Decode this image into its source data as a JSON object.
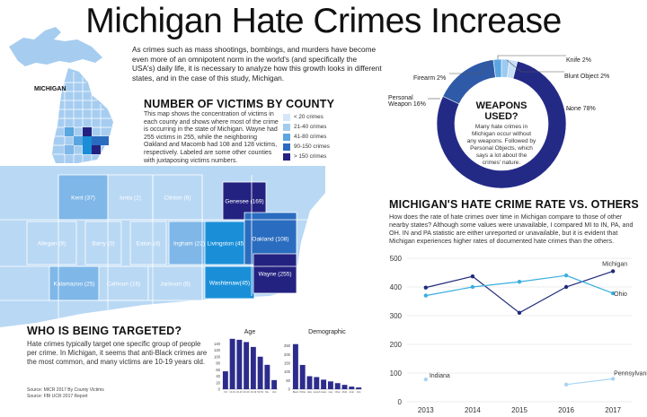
{
  "title": "Michigan Hate Crimes Increase",
  "intro": "As crimes such as mass shootings, bombings, and murders have become even more of an omnipotent norm in the world's (and specifically the USA's) daily life, it is necessary to analyze how this growth looks in different states, and in the case of this study, Michigan.",
  "state_label": "MICHIGAN",
  "county_section": {
    "heading": "NUMBER OF VICTIMS BY COUNTY",
    "text": "This map shows the concentration of victims in each county and shows where most of the crime is occurring in the state of Michigan. Wayne had 255 victims in 255, while the neighboring Oakland and Macomb had 108 and 128 victims, respectively. Labeled are some other counties with juxtaposing victims numbers.",
    "legend": [
      {
        "label": "< 20 crimes",
        "color": "#d4e7f8"
      },
      {
        "label": "21-40 crimes",
        "color": "#a2ccef"
      },
      {
        "label": "41-80 crimes",
        "color": "#5aa6e1"
      },
      {
        "label": "90-150 crimes",
        "color": "#2a6cbf"
      },
      {
        "label": "> 150 crimes",
        "color": "#242280"
      }
    ],
    "counties": [
      {
        "name": "Kent (37)",
        "color": "#7fb7e8"
      },
      {
        "name": "Ionia (2)",
        "color": "#b9d8f4"
      },
      {
        "name": "Clinton (6)",
        "color": "#b9d8f4"
      },
      {
        "name": "Genesee (169)",
        "color": "#242280"
      },
      {
        "name": "Allegan (9)",
        "color": "#b9d8f4"
      },
      {
        "name": "Barry (0)",
        "color": "#b9d8f4"
      },
      {
        "name": "Eaton (4)",
        "color": "#b9d8f4"
      },
      {
        "name": "Ingham (22)",
        "color": "#7fb7e8"
      },
      {
        "name": "Livingston (45)",
        "color": "#1a8fd8"
      },
      {
        "name": "Oakland (108)",
        "color": "#2a6cbf"
      },
      {
        "name": "Kalamazoo (25)",
        "color": "#7fb7e8"
      },
      {
        "name": "Calhoun (16)",
        "color": "#b9d8f4"
      },
      {
        "name": "Jackson (8)",
        "color": "#b9d8f4"
      },
      {
        "name": "Washtenaw(45)",
        "color": "#1a8fd8"
      },
      {
        "name": "Wayne (255)",
        "color": "#242280"
      }
    ]
  },
  "weapons_section": {
    "center_title": "WEAPONS USED?",
    "center_text": "Many hate crimes in Michigan occur without any weapons. Followed by Personal Objects, which says a lot about the crimes' nature.",
    "labels": {
      "knife": "Knife 2%",
      "blunt": "Blunt Object 2%",
      "firearm": "Firearm 2%",
      "personal": "Personal Weapon 16%",
      "none": "None 78%"
    }
  },
  "rate_section": {
    "heading": "MICHIGAN'S HATE CRIME RATE VS. OTHERS",
    "text": "How does the rate of hate crimes over time in Michigan compare to those of other nearby states? Although some values were unavailable, I compared MI to IN, PA, and OH. IN and PA statistic are either unreported or unavailable, but it is evident that Michigan experiences higher rates of documented hate crimes than the others."
  },
  "targeted_section": {
    "heading": "WHO IS BEING TARGETED?",
    "text": "Hate crimes typically target one specific group of people per crime. In Michigan, it seems that anti-Black crimes are the most common, and many victims are 10-19 years old.",
    "source1": "Source: MICR 2017 By County Victims",
    "source2": "Source: FBI UCR 2017 Report"
  },
  "chart_data": [
    {
      "type": "pie",
      "labels": [
        "Knife",
        "Blunt Object",
        "None",
        "Personal Weapon",
        "Firearm"
      ],
      "values": [
        2,
        2,
        78,
        16,
        2
      ],
      "colors": [
        "#9ccaf0",
        "#c5e0f7",
        "#232a86",
        "#2f5aa8",
        "#5ba6e2"
      ]
    },
    {
      "type": "line",
      "x": [
        2013,
        2014,
        2015,
        2016,
        2017
      ],
      "ylim": [
        0,
        500
      ],
      "yticks": [
        0,
        100,
        200,
        300,
        400,
        500
      ],
      "grid": true,
      "series": [
        {
          "name": "Michigan",
          "values": [
            398,
            437,
            310,
            400,
            455
          ],
          "color": "#1f2a7a"
        },
        {
          "name": "Ohio",
          "values": [
            370,
            400,
            418,
            440,
            378
          ],
          "color": "#39aee0"
        },
        {
          "name": "Indiana",
          "values": [
            78,
            null,
            null,
            null,
            null
          ],
          "color": "#a9d4f2"
        },
        {
          "name": "Pennsylvania",
          "values": [
            null,
            null,
            null,
            60,
            80
          ],
          "color": "#a9d4f2"
        }
      ]
    },
    {
      "type": "bar",
      "title": "Age",
      "categories": [
        "<10",
        "10-19",
        "20-29",
        "30-39",
        "40-49",
        "50-59",
        "60+",
        "Unk"
      ],
      "values": [
        55,
        155,
        152,
        145,
        130,
        100,
        75,
        28
      ],
      "ylim": [
        0,
        160
      ],
      "yticks": [
        0,
        20,
        40,
        60,
        80,
        100,
        120,
        140
      ],
      "color": "#2c2c8c"
    },
    {
      "type": "bar",
      "title": "Demographic",
      "categories": [
        "Black",
        "White",
        "Hisp",
        "Jewish",
        "Asian",
        "Gay",
        "Other",
        "Multi",
        "Arab",
        "Unk"
      ],
      "values": [
        260,
        140,
        75,
        70,
        55,
        45,
        35,
        25,
        15,
        10
      ],
      "ylim": [
        0,
        300
      ],
      "yticks": [
        0,
        50,
        100,
        150,
        200,
        250
      ],
      "color": "#2c2c8c"
    }
  ]
}
